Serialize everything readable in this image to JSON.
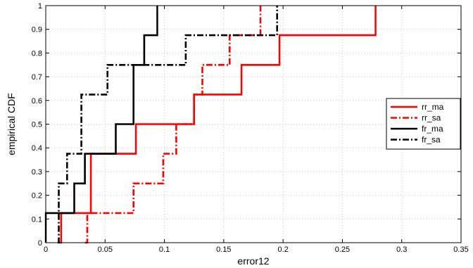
{
  "chart_data": {
    "type": "line",
    "title": "",
    "xlabel": "error12",
    "ylabel": "empirical CDF",
    "xlim": [
      0,
      0.35
    ],
    "ylim": [
      0,
      1
    ],
    "xticks": [
      0,
      0.05,
      0.1,
      0.15,
      0.2,
      0.25,
      0.3,
      0.35
    ],
    "xtick_labels": [
      "0",
      "0.05",
      "0.1",
      "0.15",
      "0.2",
      "0.25",
      "0.3",
      "0.35"
    ],
    "yticks": [
      0,
      0.1,
      0.2,
      0.3,
      0.4,
      0.5,
      0.6,
      0.7,
      0.8,
      0.9,
      1
    ],
    "ytick_labels": [
      "0",
      "0.1",
      "0.2",
      "0.3",
      "0.4",
      "0.5",
      "0.6",
      "0.7",
      "0.8",
      "0.9",
      "1"
    ],
    "grid": true,
    "legend_position": "right",
    "step": true,
    "series": [
      {
        "name": "rr_ma",
        "color": "#ff0000",
        "style": "solid",
        "x": [
          0.011,
          0.013,
          0.038,
          0.076,
          0.125,
          0.13,
          0.165,
          0.197,
          0.278
        ],
        "y": [
          0,
          0.125,
          0.375,
          0.5,
          0.625,
          0.625,
          0.75,
          0.875,
          1
        ]
      },
      {
        "name": "rr_sa",
        "color": "#ff0000",
        "style": "dashdot",
        "x": [
          0.033,
          0.035,
          0.074,
          0.099,
          0.11,
          0.125,
          0.132,
          0.155,
          0.181
        ],
        "y": [
          0,
          0.125,
          0.25,
          0.375,
          0.5,
          0.625,
          0.75,
          0.875,
          1
        ]
      },
      {
        "name": "fr_ma",
        "color": "#000000",
        "style": "solid",
        "x": [
          0,
          0.024,
          0.033,
          0.059,
          0.074,
          0.083,
          0.094
        ],
        "y": [
          0.125,
          0.25,
          0.375,
          0.5,
          0.75,
          0.875,
          1
        ]
      },
      {
        "name": "fr_sa",
        "color": "#000000",
        "style": "dashdot",
        "x": [
          0.01,
          0.011,
          0.018,
          0.03,
          0.052,
          0.118,
          0.195
        ],
        "y": [
          0,
          0.25,
          0.375,
          0.625,
          0.75,
          0.875,
          1
        ]
      }
    ]
  }
}
